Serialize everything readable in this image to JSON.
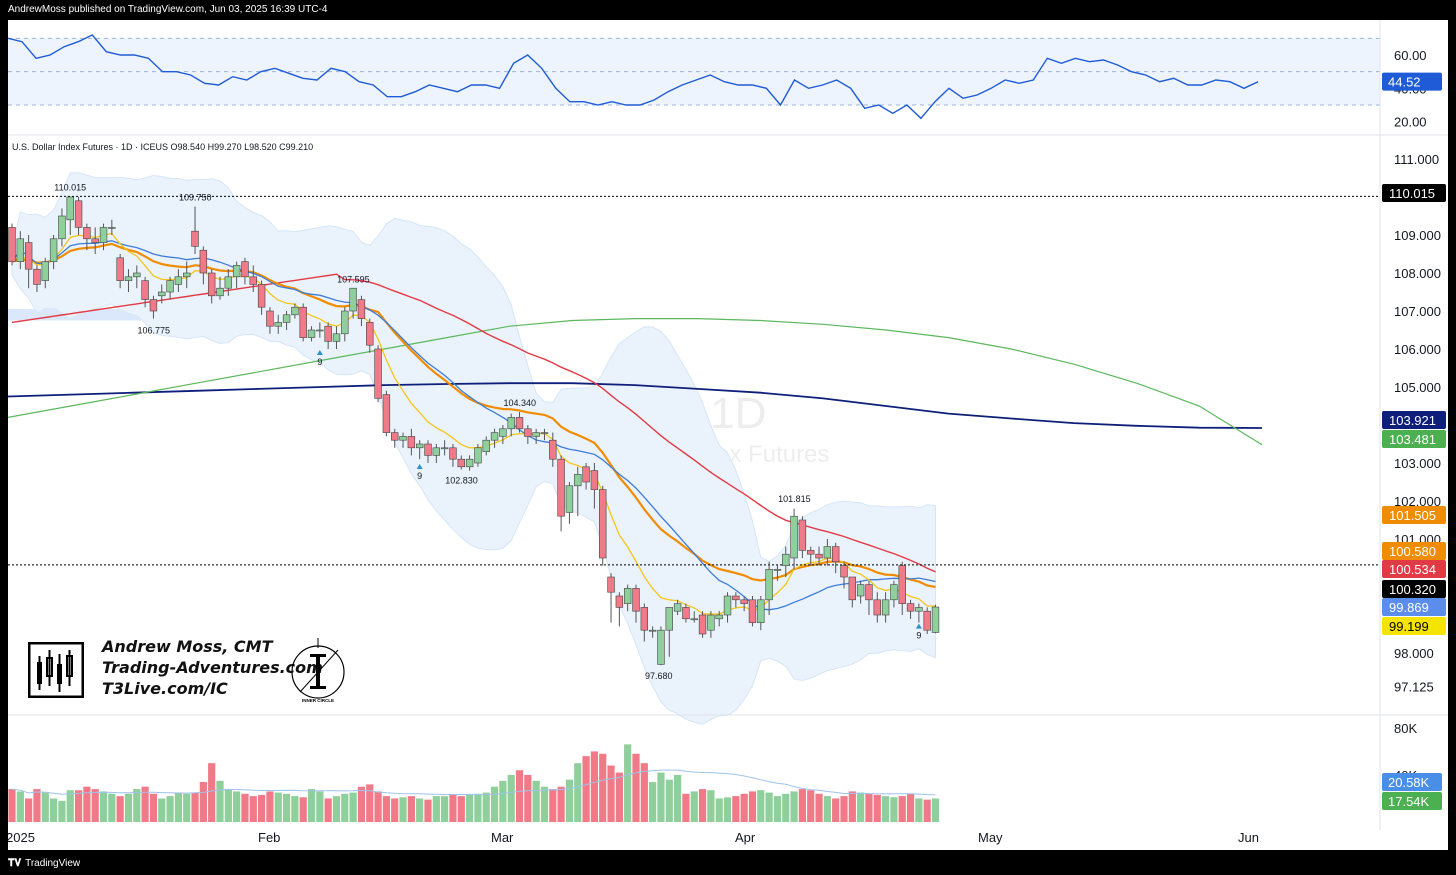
{
  "header": {
    "publish_text": "AndrewMoss published on TradingView.com, Jun 03, 2025 16:39 UTC-4"
  },
  "footer": {
    "brand": "TradingView"
  },
  "symbol_info": "U.S. Dollar Index Futures · 1D · ICEUS  O98.540  H99.270  L98.520  C99.210",
  "watermark": {
    "symbol": "DX1!, 1D",
    "name": "U.S. Dollar Index Futures"
  },
  "branding": {
    "lines": [
      "Andrew Moss, CMT",
      "Trading-Adventures.com",
      "T3Live.com/IC"
    ],
    "logo_caption": "INNER CIRCLE"
  },
  "colors": {
    "up": "#8fcf9b",
    "down": "#f07a88",
    "ema8": "#f5c518",
    "sma20": "#3d7dd8",
    "ema21": "#f08c00",
    "sma50": "#e23a44",
    "sma100": "#5cb85c",
    "sma200": "#0d1f7a",
    "bollinger": "#d6e6f7",
    "rsi": "#1f5bd6"
  },
  "chart_data": [
    {
      "type": "line",
      "title": "RSI",
      "yticks": [
        "60.00",
        "40.00",
        "20.00"
      ],
      "ylim": [
        15,
        75
      ],
      "bands": [
        30,
        50,
        70
      ],
      "last_value": "44.52",
      "values": [
        70,
        68,
        58,
        60,
        65,
        68,
        72,
        62,
        60,
        60,
        58,
        50,
        50,
        48,
        43,
        42,
        47,
        45,
        50,
        52,
        49,
        46,
        45,
        52,
        50,
        44,
        42,
        35,
        35,
        38,
        42,
        40,
        38,
        42,
        42,
        40,
        55,
        60,
        52,
        40,
        32,
        32,
        30,
        32,
        30,
        30,
        33,
        38,
        42,
        45,
        48,
        44,
        42,
        42,
        40,
        30,
        45,
        40,
        42,
        45,
        40,
        28,
        30,
        25,
        30,
        22,
        32,
        40,
        34,
        36,
        40,
        45,
        43,
        45,
        58,
        55,
        58,
        56,
        57,
        54,
        50,
        48,
        44,
        46,
        42,
        42,
        45,
        44,
        40,
        44
      ]
    },
    {
      "type": "candlestick",
      "title": "U.S. Dollar Index Futures · 1D · ICEUS",
      "x_labels": [
        "2025",
        "Feb",
        "Mar",
        "Apr",
        "May",
        "Jun"
      ],
      "yticks": [
        "111.000",
        "109.000",
        "108.000",
        "107.000",
        "106.000",
        "105.000",
        "103.000",
        "102.000",
        "101.000",
        "98.000",
        "97.125"
      ],
      "ylim": [
        96.5,
        111.5
      ],
      "annotations": [
        {
          "text": "110.015",
          "value": 110.015
        },
        {
          "text": "109.750",
          "value": 109.75
        },
        {
          "text": "106.775",
          "value": 106.775
        },
        {
          "text": "107.595",
          "value": 107.595
        },
        {
          "text": "104.340",
          "value": 104.34
        },
        {
          "text": "102.830",
          "value": 102.83
        },
        {
          "text": "101.815",
          "value": 101.815
        },
        {
          "text": "97.680",
          "value": 97.68
        }
      ],
      "td_markers": [
        "9",
        "9",
        "9"
      ],
      "price_tags": [
        {
          "text": "110.015",
          "color": "#000000"
        },
        {
          "text": "103.921",
          "color": "#0d1f7a"
        },
        {
          "text": "103.481",
          "color": "#4caf50"
        },
        {
          "text": "101.505",
          "color": "#f08c00"
        },
        {
          "text": "100.580",
          "color": "#f08c00"
        },
        {
          "text": "100.534",
          "color": "#e23a44"
        },
        {
          "text": "100.320",
          "color": "#000000"
        },
        {
          "text": "99.869",
          "color": "#5b8def"
        },
        {
          "text": "99.199",
          "color": "#f5e400"
        }
      ],
      "candles": [
        [
          109.2,
          108.3,
          109.3,
          108.2
        ],
        [
          108.3,
          108.9,
          109.1,
          108.1
        ],
        [
          108.8,
          108.1,
          109.0,
          107.6
        ],
        [
          108.1,
          107.7,
          108.2,
          107.5
        ],
        [
          107.8,
          108.3,
          108.4,
          107.6
        ],
        [
          108.3,
          108.9,
          109.0,
          108.1
        ],
        [
          108.9,
          109.5,
          109.7,
          108.7
        ],
        [
          109.4,
          110.0,
          110.0,
          109.0
        ],
        [
          109.9,
          109.2,
          110.0,
          109.0
        ],
        [
          109.2,
          108.9,
          109.3,
          108.6
        ],
        [
          108.9,
          108.8,
          109.2,
          108.5
        ],
        [
          108.8,
          109.2,
          109.3,
          108.6
        ],
        [
          109.2,
          109.2,
          109.4,
          109.0
        ],
        [
          108.4,
          107.8,
          108.5,
          107.6
        ],
        [
          107.8,
          107.9,
          108.1,
          107.5
        ],
        [
          107.9,
          108.0,
          108.2,
          107.6
        ],
        [
          107.8,
          107.3,
          107.9,
          107.1
        ],
        [
          107.3,
          107.0,
          107.4,
          106.8
        ],
        [
          107.4,
          107.5,
          107.7,
          107.2
        ],
        [
          107.5,
          107.8,
          107.9,
          107.3
        ],
        [
          107.7,
          107.9,
          108.1,
          107.5
        ],
        [
          107.9,
          108.0,
          108.3,
          107.6
        ],
        [
          109.1,
          108.7,
          109.75,
          108.5
        ],
        [
          108.6,
          108.0,
          108.7,
          107.7
        ],
        [
          108.0,
          107.4,
          108.1,
          107.2
        ],
        [
          107.4,
          107.6,
          107.9,
          107.3
        ],
        [
          107.6,
          107.9,
          108.1,
          107.4
        ],
        [
          107.9,
          108.2,
          108.3,
          107.6
        ],
        [
          108.3,
          107.9,
          108.4,
          107.7
        ],
        [
          107.9,
          107.7,
          108.2,
          107.5
        ],
        [
          107.7,
          107.1,
          107.8,
          106.9
        ],
        [
          107.0,
          106.6,
          107.1,
          106.4
        ],
        [
          106.6,
          106.7,
          106.9,
          106.4
        ],
        [
          106.7,
          106.9,
          107.0,
          106.5
        ],
        [
          106.9,
          107.1,
          107.2,
          106.8
        ],
        [
          107.1,
          106.3,
          107.2,
          106.2
        ],
        [
          106.3,
          106.5,
          106.6,
          106.2
        ],
        [
          106.5,
          106.5,
          106.7,
          106.3
        ],
        [
          106.6,
          106.2,
          106.7,
          106.0
        ],
        [
          106.2,
          106.4,
          106.6,
          106.0
        ],
        [
          106.4,
          107.0,
          107.1,
          106.2
        ],
        [
          107.0,
          107.6,
          107.6,
          106.8
        ],
        [
          107.3,
          106.8,
          107.4,
          106.6
        ],
        [
          106.7,
          106.1,
          106.8,
          105.9
        ],
        [
          106.0,
          104.7,
          106.1,
          104.6
        ],
        [
          104.8,
          103.8,
          104.9,
          103.7
        ],
        [
          103.8,
          103.6,
          103.9,
          103.4
        ],
        [
          103.6,
          103.7,
          103.8,
          103.4
        ],
        [
          103.7,
          103.4,
          103.9,
          103.2
        ],
        [
          103.4,
          103.5,
          103.6,
          103.1
        ],
        [
          103.5,
          103.2,
          103.6,
          103.0
        ],
        [
          103.2,
          103.4,
          103.5,
          103.0
        ],
        [
          103.4,
          103.4,
          103.6,
          103.2
        ],
        [
          103.4,
          103.1,
          103.5,
          102.9
        ],
        [
          103.1,
          102.9,
          103.2,
          102.83
        ],
        [
          102.9,
          103.1,
          103.2,
          102.8
        ],
        [
          103.0,
          103.4,
          103.5,
          102.9
        ],
        [
          103.3,
          103.6,
          103.7,
          103.2
        ],
        [
          103.6,
          103.8,
          103.9,
          103.4
        ],
        [
          103.7,
          103.9,
          104.0,
          103.5
        ],
        [
          103.9,
          104.2,
          104.3,
          103.7
        ],
        [
          104.2,
          103.9,
          104.34,
          103.8
        ],
        [
          103.9,
          103.7,
          104.0,
          103.5
        ],
        [
          103.7,
          103.8,
          103.9,
          103.5
        ],
        [
          103.8,
          103.8,
          103.9,
          103.6
        ],
        [
          103.6,
          103.1,
          103.8,
          102.9
        ],
        [
          103.1,
          101.6,
          103.2,
          101.2
        ],
        [
          101.7,
          102.4,
          102.5,
          101.4
        ],
        [
          102.4,
          102.7,
          102.9,
          101.6
        ],
        [
          102.9,
          102.5,
          103.0,
          102.3
        ],
        [
          102.8,
          102.3,
          103.0,
          101.8
        ],
        [
          102.3,
          100.5,
          102.4,
          100.3
        ],
        [
          100.0,
          99.6,
          100.1,
          98.8
        ],
        [
          99.5,
          99.2,
          99.6,
          98.7
        ],
        [
          99.3,
          99.7,
          99.8,
          99.1
        ],
        [
          99.7,
          99.1,
          99.8,
          98.8
        ],
        [
          99.2,
          98.6,
          99.3,
          98.3
        ],
        [
          98.6,
          98.6,
          98.7,
          98.4
        ],
        [
          97.7,
          98.6,
          98.7,
          97.68
        ],
        [
          98.6,
          99.2,
          99.2,
          97.9
        ],
        [
          99.1,
          99.3,
          99.4,
          99.0
        ],
        [
          99.2,
          98.9,
          99.3,
          98.8
        ],
        [
          98.9,
          98.9,
          99.1,
          98.8
        ],
        [
          99.0,
          98.5,
          99.1,
          98.4
        ],
        [
          98.6,
          99.0,
          99.1,
          98.4
        ],
        [
          98.9,
          99.0,
          99.1,
          98.7
        ],
        [
          99.0,
          99.5,
          99.6,
          98.8
        ],
        [
          99.5,
          99.4,
          99.6,
          99.2
        ],
        [
          99.4,
          99.3,
          99.5,
          99.1
        ],
        [
          99.4,
          98.8,
          99.5,
          98.7
        ],
        [
          98.8,
          99.4,
          99.5,
          98.6
        ],
        [
          99.4,
          100.2,
          100.4,
          99.0
        ],
        [
          100.2,
          100.2,
          100.3,
          99.9
        ],
        [
          100.3,
          100.6,
          100.8,
          100.0
        ],
        [
          100.5,
          101.6,
          101.8,
          100.2
        ],
        [
          101.5,
          100.7,
          101.6,
          100.5
        ],
        [
          100.7,
          100.6,
          100.8,
          100.3
        ],
        [
          100.6,
          100.5,
          100.8,
          100.3
        ],
        [
          100.5,
          100.8,
          101.0,
          100.3
        ],
        [
          100.8,
          100.4,
          100.9,
          100.1
        ],
        [
          100.3,
          100.0,
          100.4,
          99.7
        ],
        [
          100.0,
          99.4,
          100.0,
          99.2
        ],
        [
          99.5,
          99.8,
          99.9,
          99.3
        ],
        [
          99.8,
          99.4,
          99.9,
          99.0
        ],
        [
          99.4,
          99.0,
          99.6,
          98.8
        ],
        [
          99.0,
          99.4,
          99.6,
          98.8
        ],
        [
          99.4,
          99.8,
          99.9,
          99.2
        ],
        [
          100.3,
          99.3,
          100.4,
          99.0
        ],
        [
          99.3,
          99.1,
          99.4,
          98.9
        ],
        [
          99.1,
          99.2,
          99.3,
          98.8
        ],
        [
          99.1,
          98.6,
          99.2,
          98.5
        ],
        [
          98.54,
          99.21,
          99.27,
          98.52
        ]
      ]
    },
    {
      "type": "bar",
      "title": "Volume",
      "yticks": [
        "80K",
        "40K"
      ],
      "ylim": [
        0,
        85
      ],
      "last_values": [
        "20.58K",
        "17.54K"
      ],
      "values": [
        28,
        26,
        20,
        28,
        25,
        20,
        18,
        27,
        27,
        30,
        28,
        26,
        24,
        22,
        24,
        28,
        30,
        24,
        20,
        22,
        25,
        24,
        25,
        34,
        50,
        35,
        28,
        26,
        24,
        22,
        23,
        26,
        25,
        24,
        22,
        21,
        28,
        26,
        20,
        22,
        24,
        25,
        30,
        32,
        26,
        22,
        20,
        21,
        22,
        20,
        19,
        22,
        22,
        23,
        22,
        23,
        24,
        25,
        30,
        35,
        40,
        44,
        40,
        35,
        30,
        28,
        30,
        36,
        50,
        56,
        60,
        58,
        48,
        42,
        66,
        58,
        50,
        34,
        42,
        36,
        40,
        24,
        26,
        28,
        27,
        20,
        21,
        22,
        24,
        26,
        27,
        25,
        22,
        24,
        26,
        28,
        27,
        24,
        22,
        20,
        22,
        26,
        25,
        24,
        23,
        22,
        21,
        22,
        24,
        20,
        19,
        20
      ]
    }
  ]
}
